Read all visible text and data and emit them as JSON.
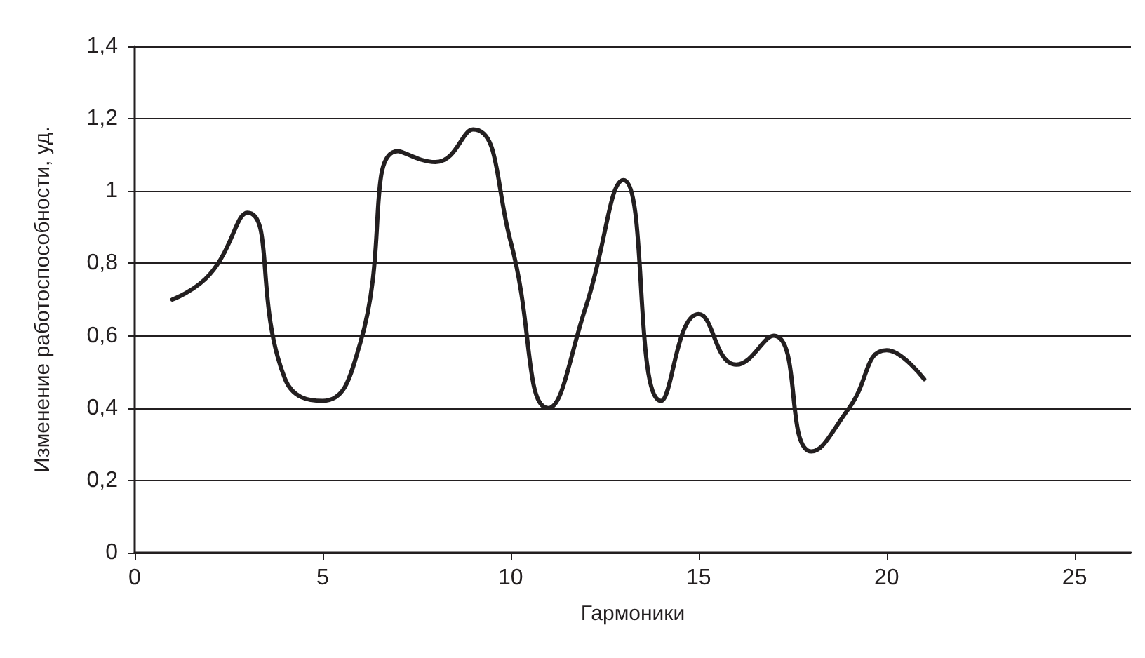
{
  "chart_data": {
    "type": "line",
    "xlabel": "Гармоники",
    "ylabel": "Изменение работоспособности, уд.",
    "x": [
      1,
      2,
      3,
      4,
      5,
      6,
      7,
      8,
      9,
      10,
      11,
      12,
      13,
      14,
      15,
      16,
      17,
      18,
      19,
      20,
      21
    ],
    "series": [
      {
        "color": "#231f20",
        "values": [
          0.7,
          0.77,
          0.94,
          0.48,
          0.42,
          0.58,
          1.11,
          1.08,
          1.17,
          0.86,
          0.4,
          0.68,
          1.03,
          0.42,
          0.66,
          0.52,
          0.6,
          0.28,
          0.4,
          0.56,
          0.48
        ]
      }
    ],
    "xlim": [
      0,
      26.5
    ],
    "xticks": [
      0,
      5,
      10,
      15,
      20,
      25
    ],
    "ylim": [
      0,
      1.4
    ],
    "yticks": [
      {
        "value": 0,
        "label": "0"
      },
      {
        "value": 0.2,
        "label": "0,2"
      },
      {
        "value": 0.4,
        "label": "0,4"
      },
      {
        "value": 0.6,
        "label": "0,6"
      },
      {
        "value": 0.8,
        "label": "0,8"
      },
      {
        "value": 1,
        "label": "1"
      },
      {
        "value": 1.2,
        "label": "1,2"
      },
      {
        "value": 1.4,
        "label": "1,4"
      }
    ],
    "grid": "y",
    "marker": "none",
    "line_style": "solid"
  }
}
